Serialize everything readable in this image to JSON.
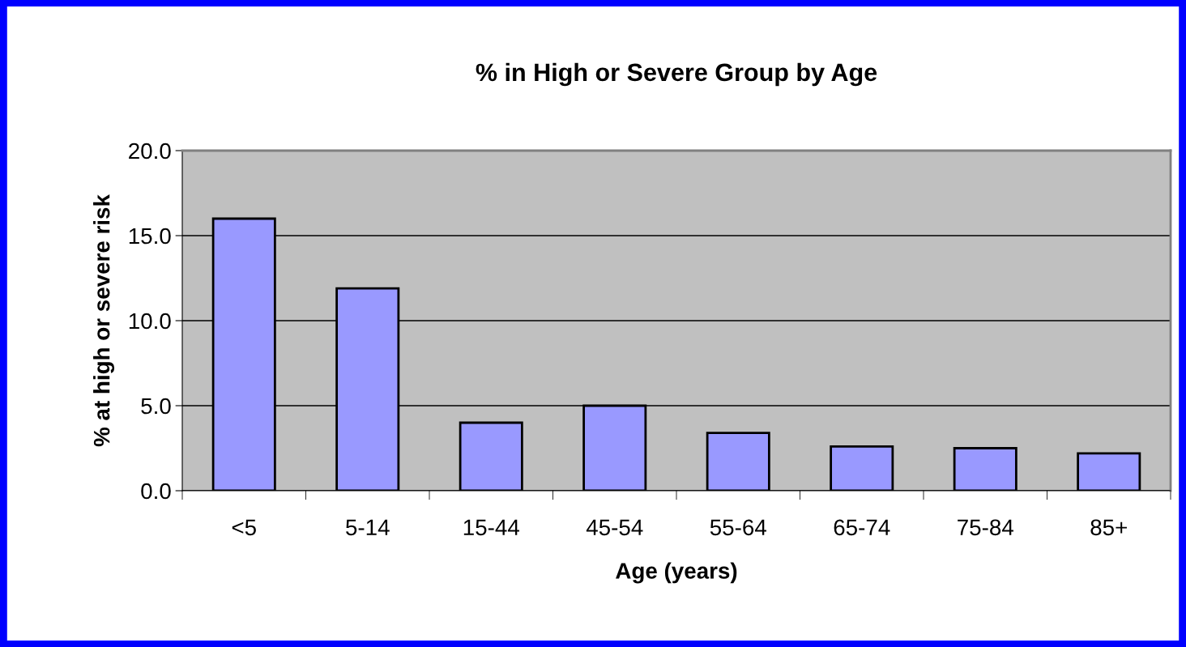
{
  "chart_data": {
    "type": "bar",
    "title": "% in High or Severe Group by Age",
    "xlabel": "Age (years)",
    "ylabel": "% at high or severe risk",
    "categories": [
      "<5",
      "5-14",
      "15-44",
      "45-54",
      "55-64",
      "65-74",
      "75-84",
      "85+"
    ],
    "values": [
      16.0,
      11.9,
      4.0,
      5.0,
      3.4,
      2.6,
      2.5,
      2.2
    ],
    "color": "#9999ff",
    "ylim": [
      0,
      20
    ],
    "yticks": [
      {
        "value": 0,
        "label": "0.0"
      },
      {
        "value": 5,
        "label": "5.0"
      },
      {
        "value": 10,
        "label": "10.0"
      },
      {
        "value": 15,
        "label": "15.0"
      },
      {
        "value": 20,
        "label": "20.0"
      }
    ],
    "grid": "y"
  }
}
